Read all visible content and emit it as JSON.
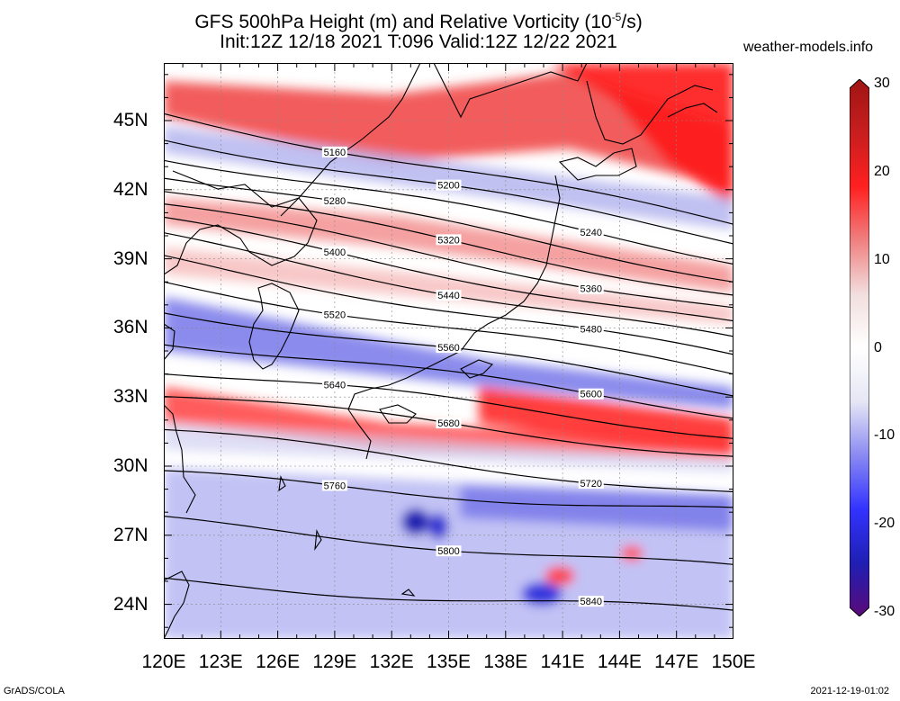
{
  "title_line1": "GFS 500hPa Height (m) and Relative Vorticity (10",
  "title_exp": "-5",
  "title_line1_end": "/s)",
  "title_line2": "Init:12Z 12/18 2021 T:096 Valid:12Z 12/22 2021",
  "site": "weather-models.info",
  "footer_left": "GrADS/COLA",
  "footer_right": "2021-12-19-01:02",
  "map": {
    "lon_range": [
      120,
      150
    ],
    "lat_range": [
      22.5,
      47.5
    ],
    "lat_labels": [
      "45N",
      "42N",
      "39N",
      "36N",
      "33N",
      "30N",
      "27N",
      "24N"
    ],
    "lon_labels": [
      "120E",
      "123E",
      "126E",
      "129E",
      "132E",
      "135E",
      "138E",
      "141E",
      "144E",
      "147E",
      "150E"
    ]
  },
  "contours": [
    {
      "label": "5160",
      "lat_w": 45.3,
      "lat_e": 40.5
    },
    {
      "label": "5200",
      "lat_w": 44.3,
      "lat_e": 39.8
    },
    {
      "label": "5240",
      "lat_w": 43.5,
      "lat_e": 39.0
    },
    {
      "label": "5280",
      "lat_w": 42.7,
      "lat_e": 38.2
    },
    {
      "label": "5320",
      "lat_w": 42.0,
      "lat_e": 37.5
    },
    {
      "label": "5360",
      "lat_w": 41.3,
      "lat_e": 36.8
    },
    {
      "label": "5400",
      "lat_w": 40.6,
      "lat_e": 36.1
    },
    {
      "label": "5440",
      "lat_w": 39.9,
      "lat_e": 35.4
    },
    {
      "label": "5480",
      "lat_w": 39.0,
      "lat_e": 34.7
    },
    {
      "label": "5520",
      "lat_w": 38.0,
      "lat_e": 34.0
    },
    {
      "label": "5560",
      "lat_w": 36.8,
      "lat_e": 33.2
    },
    {
      "label": "5600",
      "lat_w": 35.5,
      "lat_e": 32.3
    },
    {
      "label": "5640",
      "lat_w": 34.2,
      "lat_e": 31.4
    },
    {
      "label": "5680",
      "lat_w": 33.1,
      "lat_e": 30.5
    },
    {
      "label": "5720",
      "lat_w": 31.5,
      "lat_e": 28.8
    },
    {
      "label": "5760",
      "lat_w": 29.6,
      "lat_e": 28.0
    },
    {
      "label": "5800",
      "lat_w": 27.6,
      "lat_e": 25.5
    },
    {
      "label": "5840",
      "lat_w": 25.0,
      "lat_e": 23.6
    }
  ],
  "colorbar": {
    "labels": [
      "30",
      "20",
      "10",
      "0",
      "-10",
      "-20",
      "-30"
    ],
    "colors": [
      "#5a0a78",
      "#1f1fb4",
      "#3333ff",
      "#8a8af2",
      "#e6e6f5",
      "#ffffff",
      "#f2dede",
      "#f08080",
      "#ff2020",
      "#c81e1e",
      "#a01414"
    ]
  }
}
